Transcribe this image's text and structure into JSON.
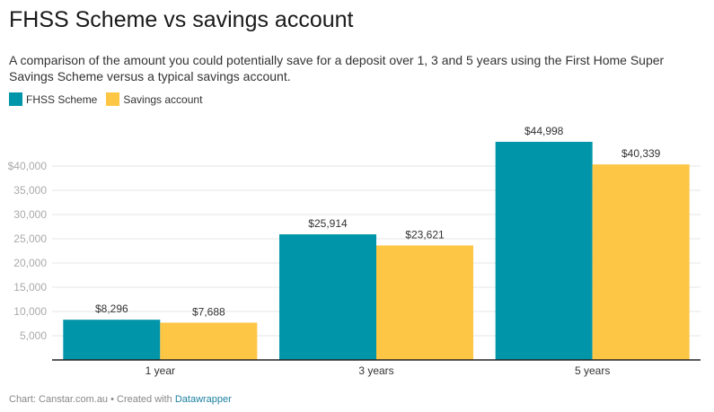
{
  "title": "FHSS Scheme vs savings account",
  "description": "A comparison of the amount you could potentially save for a deposit over 1, 3 and 5 years using the First Home Super Savings Scheme versus a typical savings account.",
  "footer": {
    "source": "Chart: Canstar.com.au • Created with ",
    "tool": "Datawrapper"
  },
  "chart_data": {
    "type": "bar",
    "categories": [
      "1 year",
      "3 years",
      "5 years"
    ],
    "series": [
      {
        "name": "FHSS Scheme",
        "color": "#0095a8",
        "values": [
          8296,
          25914,
          44998
        ],
        "labels": [
          "$8,296",
          "$25,914",
          "$44,998"
        ]
      },
      {
        "name": "Savings account",
        "color": "#fec645",
        "values": [
          7688,
          23621,
          40339
        ],
        "labels": [
          "$7,688",
          "$23,621",
          "$40,339"
        ]
      }
    ],
    "yticks": [
      5000,
      10000,
      15000,
      20000,
      25000,
      30000,
      35000,
      40000
    ],
    "ytick_labels": [
      "5,000",
      "10,000",
      "15,000",
      "20,000",
      "25,000",
      "30,000",
      "35,000",
      "$40,000"
    ],
    "ylim": [
      0,
      45000
    ],
    "grid": true,
    "legend": "top-left"
  }
}
